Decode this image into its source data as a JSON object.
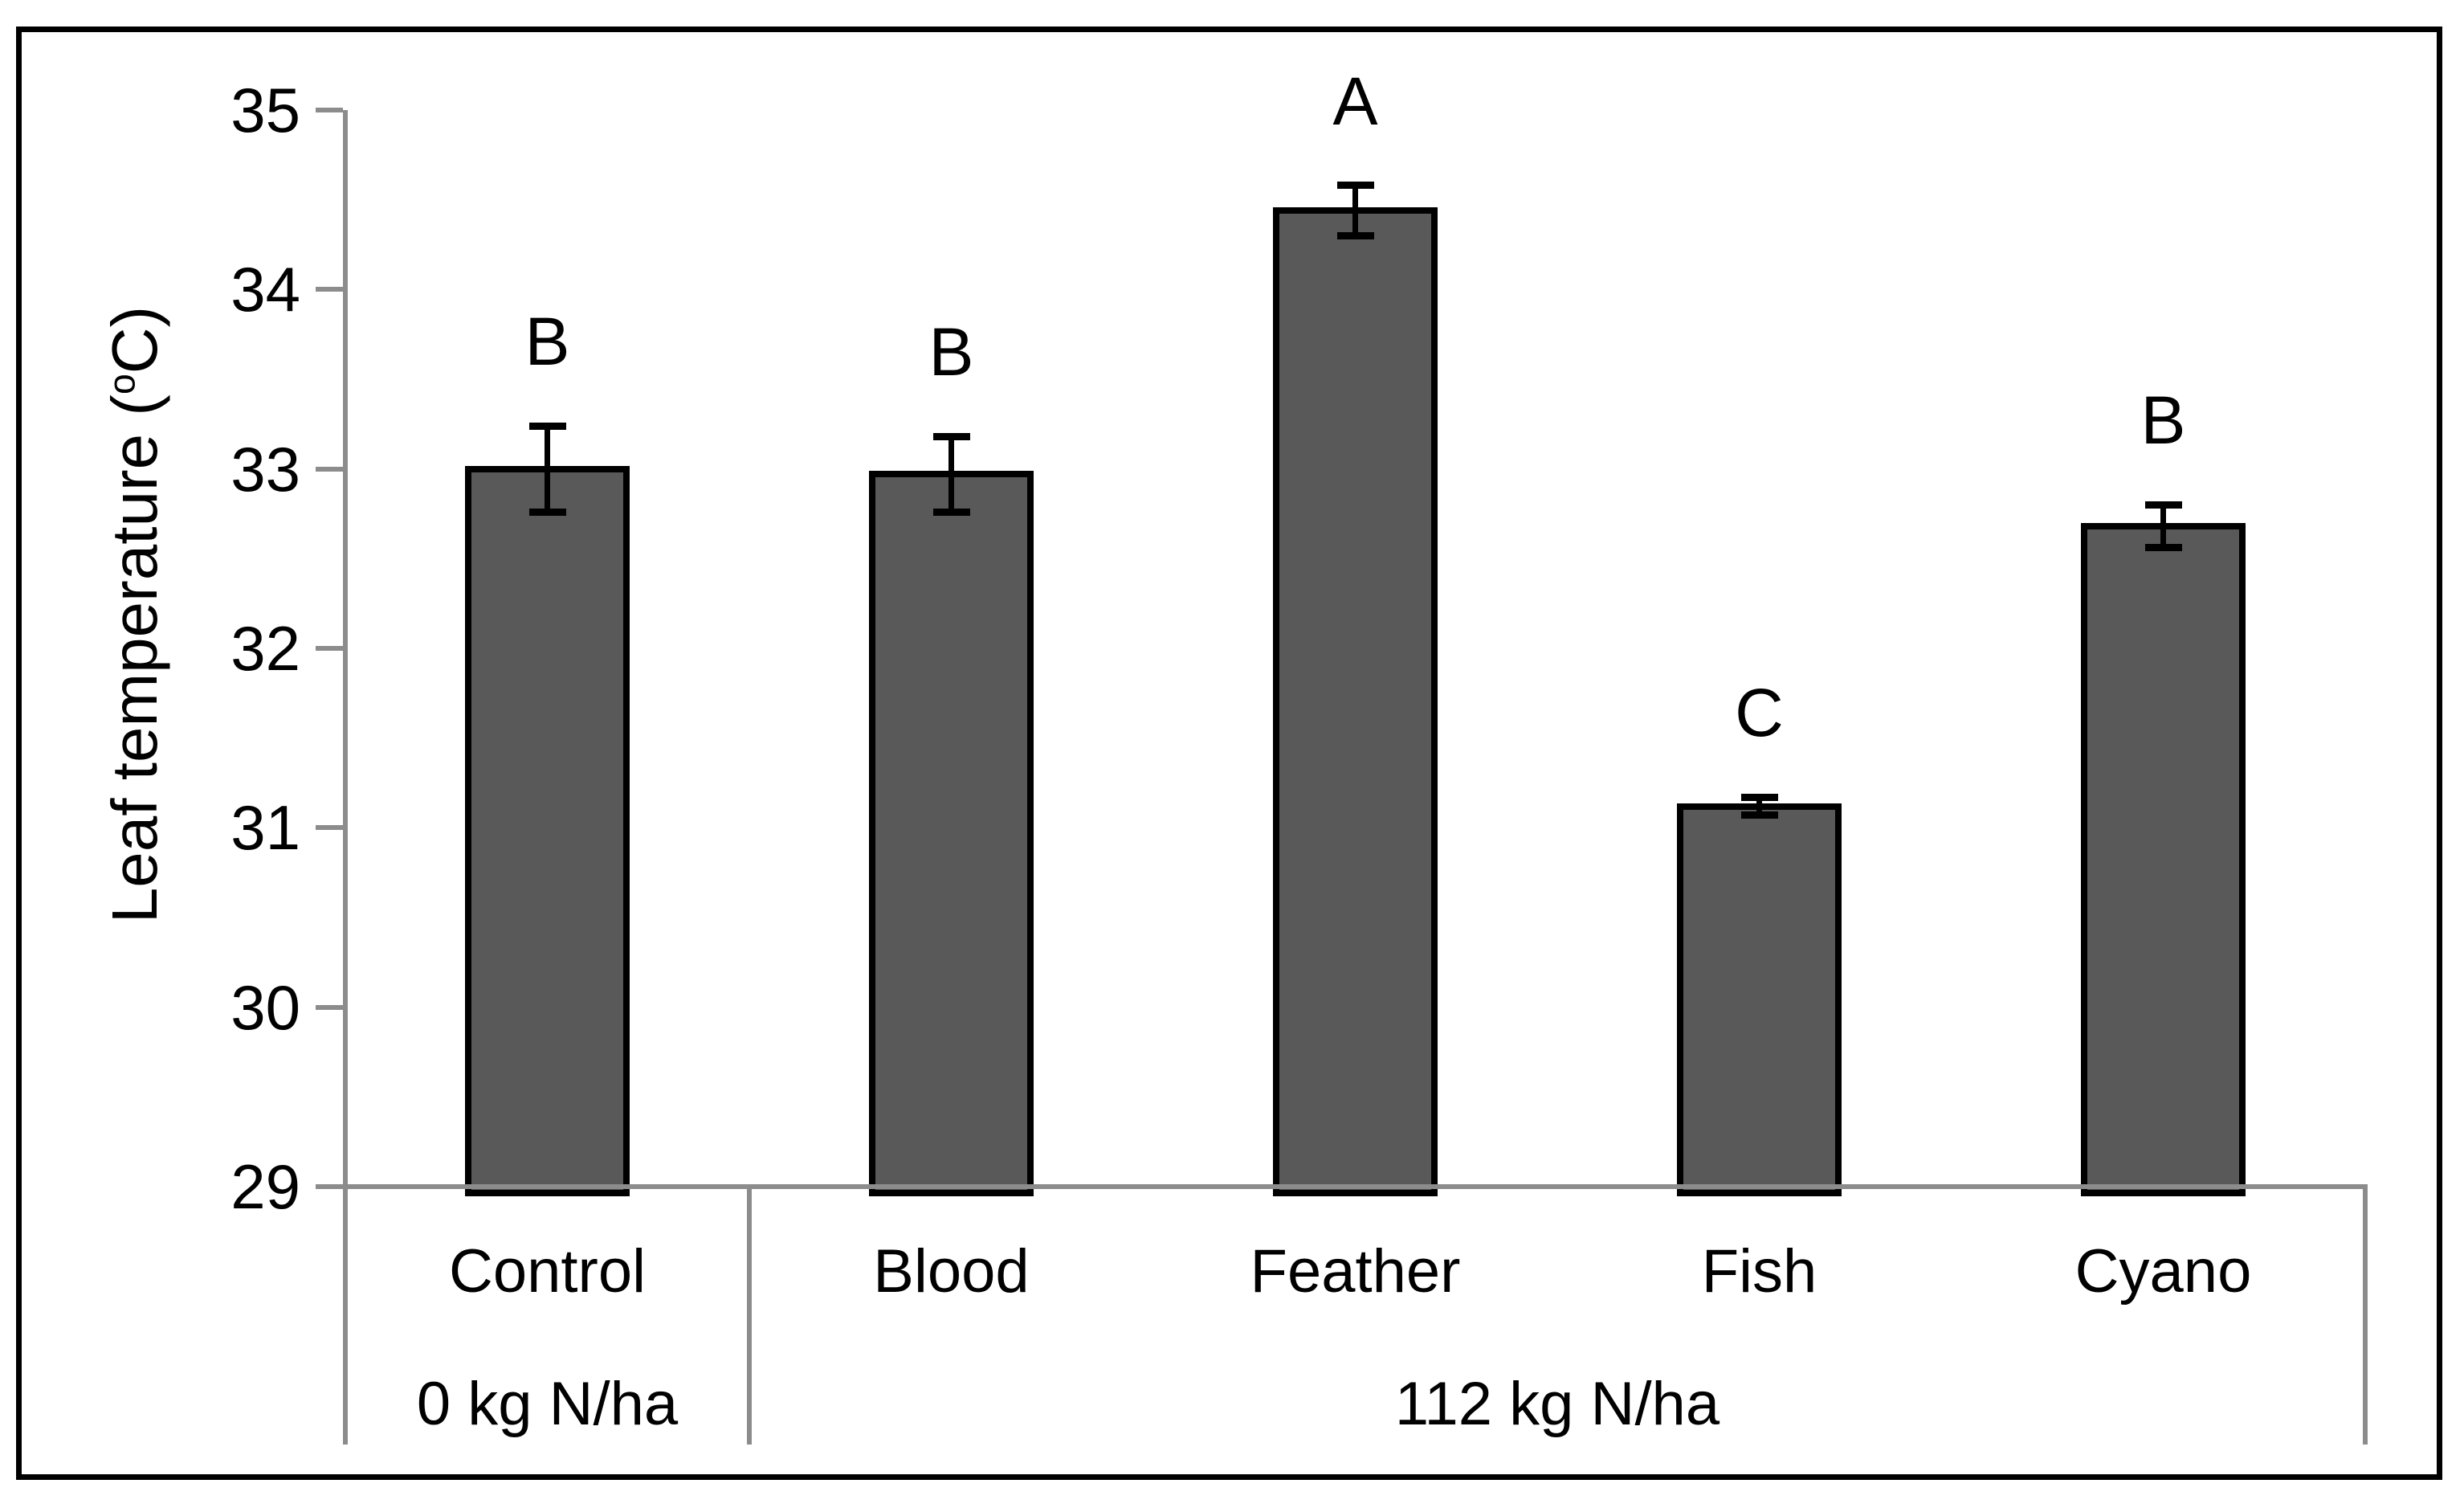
{
  "chart_data": {
    "type": "bar",
    "title": "",
    "xlabel": "",
    "ylabel": "Leaf temperature (°C)",
    "ylabel_parts": {
      "prefix": "Leaf temperature (",
      "sup": "o",
      "suffix": "C)"
    },
    "ylim": [
      29,
      35
    ],
    "yticks": [
      35,
      34,
      33,
      32,
      31,
      30,
      29
    ],
    "categories": [
      "Control",
      "Blood",
      "Feather",
      "Fish",
      "Cyano"
    ],
    "values": [
      33.0,
      32.97,
      34.44,
      31.12,
      32.68
    ],
    "errors": [
      0.24,
      0.21,
      0.14,
      0.05,
      0.12
    ],
    "sig_letters": [
      "B",
      "B",
      "A",
      "C",
      "B"
    ],
    "groups": [
      {
        "label": "0 kg N/ha",
        "span": 1
      },
      {
        "label": "112 kg N/ha",
        "span": 4
      }
    ],
    "bar_color": "#595959",
    "bar_border_color": "#000000",
    "error_color": "#000000",
    "axis_color": "#8c8c8c",
    "grid": false,
    "legend": false
  }
}
